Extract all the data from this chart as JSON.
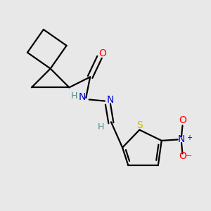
{
  "bg_color": "#e8e8e8",
  "bond_color": "#000000",
  "atom_colors": {
    "O": "#ff0000",
    "N": "#0000cd",
    "S": "#ccb800",
    "H": "#4a8f8f",
    "Nplus": "#0000cd",
    "Ominus": "#ff0000"
  },
  "line_width": 1.6,
  "dbo": 0.013
}
